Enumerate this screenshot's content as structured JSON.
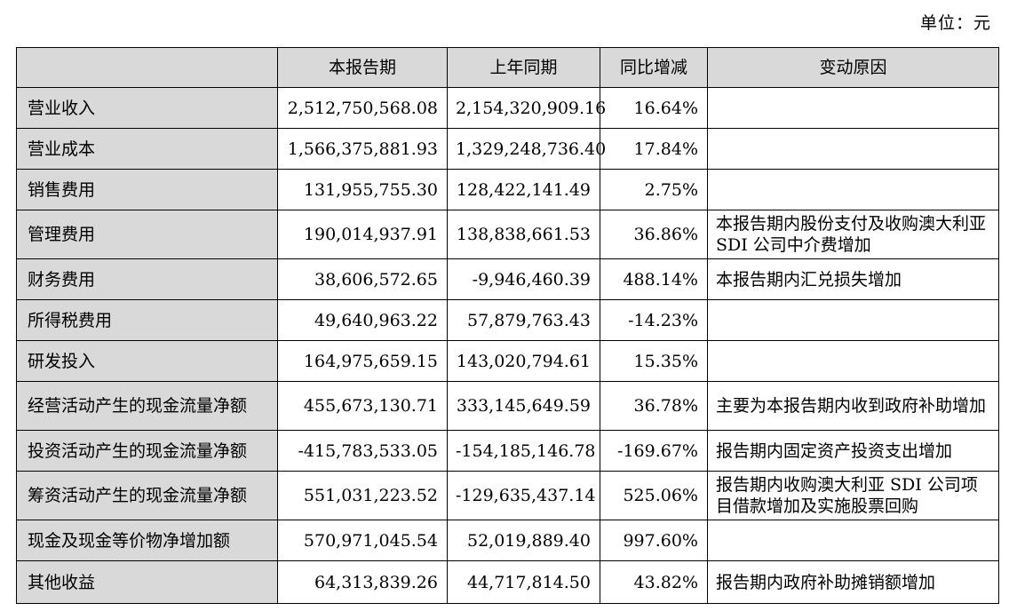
{
  "unit": "单位：元",
  "table": {
    "headers": [
      "",
      "本报告期",
      "上年同期",
      "同比增减",
      "变动原因"
    ],
    "rows": [
      {
        "item": "营业收入",
        "current": "2,512,750,568.08",
        "previous": "2,154,320,909.16",
        "change": "16.64%",
        "reason": ""
      },
      {
        "item": "营业成本",
        "current": "1,566,375,881.93",
        "previous": "1,329,248,736.40",
        "change": "17.84%",
        "reason": ""
      },
      {
        "item": "销售费用",
        "current": "131,955,755.30",
        "previous": "128,422,141.49",
        "change": "2.75%",
        "reason": ""
      },
      {
        "item": "管理费用",
        "current": "190,014,937.91",
        "previous": "138,838,661.53",
        "change": "36.86%",
        "reason": "本报告期内股份支付及收购澳大利亚 SDI 公司中介费增加"
      },
      {
        "item": "财务费用",
        "current": "38,606,572.65",
        "previous": "-9,946,460.39",
        "change": "488.14%",
        "reason": "本报告期内汇兑损失增加"
      },
      {
        "item": "所得税费用",
        "current": "49,640,963.22",
        "previous": "57,879,763.43",
        "change": "-14.23%",
        "reason": ""
      },
      {
        "item": "研发投入",
        "current": "164,975,659.15",
        "previous": "143,020,794.61",
        "change": "15.35%",
        "reason": ""
      },
      {
        "item": "经营活动产生的现金流量净额",
        "current": "455,673,130.71",
        "previous": "333,145,649.59",
        "change": "36.78%",
        "reason": "主要为本报告期内收到政府补助增加"
      },
      {
        "item": "投资活动产生的现金流量净额",
        "current": "-415,783,533.05",
        "previous": "-154,185,146.78",
        "change": "-169.67%",
        "reason": "报告期内固定资产投资支出增加"
      },
      {
        "item": "筹资活动产生的现金流量净额",
        "current": "551,031,223.52",
        "previous": "-129,635,437.14",
        "change": "525.06%",
        "reason": "报告期内收购澳大利亚 SDI 公司项目借款增加及实施股票回购"
      },
      {
        "item": "现金及现金等价物净增加额",
        "current": "570,971,045.54",
        "previous": "52,019,889.40",
        "change": "997.60%",
        "reason": ""
      },
      {
        "item": "其他收益",
        "current": "64,313,839.26",
        "previous": "44,717,814.50",
        "change": "43.82%",
        "reason": "报告期内政府补助摊销额增加"
      }
    ]
  }
}
